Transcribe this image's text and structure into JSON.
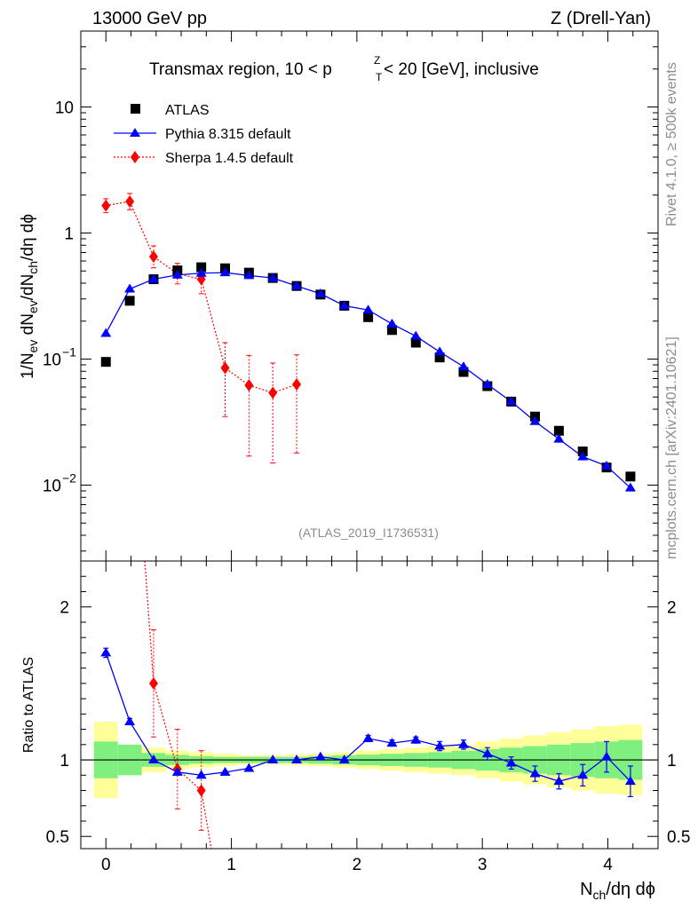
{
  "header": {
    "left": "13000 GeV pp",
    "right": "Z (Drell-Yan)"
  },
  "side_text": {
    "rivet": "Rivet 4.1.0, ≥ 500k events",
    "mcplots": "mcplots.cern.ch [arXiv:2401.10621]"
  },
  "colors": {
    "atlas": "#000000",
    "pythia": "#0000ff",
    "sherpa": "#ff0000",
    "band_inner": "#7ff07f",
    "band_outer": "#ffff99"
  },
  "chart_data": {
    "type": "line",
    "title": "Transmax region, 10 < pT^Z < 20 [GeV], inclusive",
    "title_parts": {
      "pre": "Transmax region, 10 < p",
      "sup": "Z",
      "sub": "T",
      "post": " < 20 [GeV], inclusive"
    },
    "watermark": "(ATLAS_2019_I1736531)",
    "xlabel": "N_ch/dη dϕ",
    "xlabel_parts": {
      "main": "N",
      "sub": "ch",
      "post": "/dη dϕ"
    },
    "ylabel": "1/N_ev dN_ev/dN_ch/dη dϕ",
    "ylabel_parts": {
      "a": "1/N",
      "a_sub": "ev",
      "b": " dN",
      "b_sub": "ev",
      "c": "/dN",
      "c_sub": "ch",
      "d": "/dη dϕ"
    },
    "ratio_ylabel": "Ratio to ATLAS",
    "xlim": [
      -0.2,
      4.4
    ],
    "ylim": [
      0.0025,
      40
    ],
    "yscale": "log",
    "ratio_ylim": [
      0.42,
      2.3
    ],
    "x_ticks": [
      "0",
      "1",
      "2",
      "3",
      "4"
    ],
    "y_ticks": [
      {
        "value": 10,
        "label": "10"
      },
      {
        "value": 1,
        "label": "1"
      },
      {
        "value": 0.1,
        "base": "10",
        "exp": "−1"
      },
      {
        "value": 0.01,
        "base": "10",
        "exp": "−2"
      }
    ],
    "ratio_ticks": [
      "2",
      "1",
      "0.5"
    ],
    "x": [
      0.0,
      0.19,
      0.38,
      0.57,
      0.76,
      0.95,
      1.14,
      1.33,
      1.52,
      1.71,
      1.9,
      2.09,
      2.28,
      2.47,
      2.66,
      2.85,
      3.04,
      3.23,
      3.42,
      3.61,
      3.8,
      3.99,
      4.18
    ],
    "series": [
      {
        "name": "ATLAS",
        "marker": "square",
        "values": [
          0.095,
          0.29,
          0.43,
          0.505,
          0.535,
          0.525,
          0.485,
          0.44,
          0.38,
          0.325,
          0.265,
          0.215,
          0.17,
          0.135,
          0.103,
          0.079,
          0.061,
          0.046,
          0.035,
          0.027,
          0.0185,
          0.0138,
          0.0117
        ],
        "band_inner": [
          0.12,
          0.1,
          0.045,
          0.033,
          0.025,
          0.02,
          0.02,
          0.02,
          0.02,
          0.025,
          0.03,
          0.035,
          0.04,
          0.045,
          0.05,
          0.06,
          0.07,
          0.08,
          0.09,
          0.1,
          0.11,
          0.12,
          0.13
        ],
        "band_outer": [
          0.25,
          0.1,
          0.08,
          0.06,
          0.05,
          0.04,
          0.03,
          0.03,
          0.035,
          0.04,
          0.05,
          0.06,
          0.07,
          0.08,
          0.09,
          0.1,
          0.12,
          0.14,
          0.16,
          0.18,
          0.2,
          0.22,
          0.23
        ]
      },
      {
        "name": "Pythia 8.315 default",
        "marker": "triangle",
        "values": [
          0.16,
          0.36,
          0.43,
          0.465,
          0.48,
          0.485,
          0.46,
          0.44,
          0.38,
          0.33,
          0.265,
          0.245,
          0.19,
          0.152,
          0.114,
          0.087,
          0.063,
          0.046,
          0.032,
          0.0232,
          0.0168,
          0.0142,
          0.0095
        ],
        "ratio": [
          1.7,
          1.25,
          1.0,
          0.92,
          0.9,
          0.92,
          0.945,
          1.0,
          1.0,
          1.02,
          1.0,
          1.14,
          1.11,
          1.13,
          1.09,
          1.1,
          1.04,
          0.98,
          0.91,
          0.86,
          0.9,
          1.02,
          0.86
        ],
        "ratio_err": [
          0.03,
          0.02,
          0.01,
          0.01,
          0.01,
          0.01,
          0.01,
          0.01,
          0.01,
          0.01,
          0.01,
          0.02,
          0.02,
          0.02,
          0.03,
          0.03,
          0.04,
          0.04,
          0.05,
          0.05,
          0.07,
          0.1,
          0.1
        ]
      },
      {
        "name": "Sherpa 1.4.5 default",
        "marker": "diamond",
        "x": [
          0.0,
          0.19,
          0.38,
          0.57,
          0.76,
          0.95,
          1.14,
          1.33,
          1.52
        ],
        "values": [
          1.65,
          1.78,
          0.65,
          0.475,
          0.43,
          0.085,
          0.062,
          0.054,
          0.063
        ],
        "err_low": [
          0.2,
          0.25,
          0.12,
          0.08,
          0.1,
          0.05,
          0.045,
          0.039,
          0.045
        ],
        "err_high": [
          0.22,
          0.28,
          0.14,
          0.1,
          0.12,
          0.05,
          0.045,
          0.039,
          0.045
        ],
        "ratio_x": [
          0.38,
          0.57,
          0.76
        ],
        "ratio": [
          1.5,
          0.94,
          0.8
        ],
        "ratio_err": [
          0.35,
          0.26,
          0.26
        ]
      }
    ]
  }
}
